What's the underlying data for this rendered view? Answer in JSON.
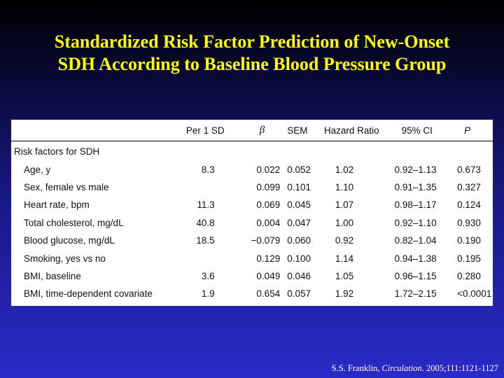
{
  "slide": {
    "title_line1": "Standardized Risk Factor Prediction of New-Onset",
    "title_line2": "SDH According to Baseline Blood Pressure Group"
  },
  "table": {
    "headers": [
      "",
      "Per 1 SD",
      "β",
      "SEM",
      "Hazard Ratio",
      "95% CI",
      "P"
    ],
    "section_label": "Risk factors for SDH",
    "rows": [
      {
        "label": "Age, y",
        "per_sd": "8.3",
        "beta": "0.022",
        "sem": "0.052",
        "hr": "1.02",
        "ci": "0.92–1.13",
        "p": "0.673"
      },
      {
        "label": "Sex, female vs male",
        "per_sd": "",
        "beta": "0.099",
        "sem": "0.101",
        "hr": "1.10",
        "ci": "0.91–1.35",
        "p": "0.327"
      },
      {
        "label": "Heart rate, bpm",
        "per_sd": "11.3",
        "beta": "0.069",
        "sem": "0.045",
        "hr": "1.07",
        "ci": "0.98–1.17",
        "p": "0.124"
      },
      {
        "label": "Total cholesterol, mg/dL",
        "per_sd": "40.8",
        "beta": "0.004",
        "sem": "0.047",
        "hr": "1.00",
        "ci": "0.92–1.10",
        "p": "0.930"
      },
      {
        "label": "Blood glucose, mg/dL",
        "per_sd": "18.5",
        "beta": "−0.079",
        "sem": "0.060",
        "hr": "0.92",
        "ci": "0.82–1.04",
        "p": "0.190"
      },
      {
        "label": "Smoking, yes vs no",
        "per_sd": "",
        "beta": "0.129",
        "sem": "0.100",
        "hr": "1.14",
        "ci": "0.94–1.38",
        "p": "0.195"
      },
      {
        "label": "BMI, baseline",
        "per_sd": "3.6",
        "beta": "0.049",
        "sem": "0.046",
        "hr": "1.05",
        "ci": "0.96–1.15",
        "p": "0.280"
      },
      {
        "label": "BMI, time-dependent covariate",
        "per_sd": "1.9",
        "beta": "0.654",
        "sem": "0.057",
        "hr": "1.92",
        "ci": "1.72–2.15",
        "p": "<0.0001"
      }
    ]
  },
  "citation": {
    "authors": "S.S. Franklin, ",
    "journal": "Circulation",
    "ref": ". 2005;111:1121-1127"
  },
  "colors": {
    "title": "#ffff00",
    "background_top": "#000000",
    "background_bottom": "#2a2ac8",
    "table_bg": "#ffffff"
  }
}
